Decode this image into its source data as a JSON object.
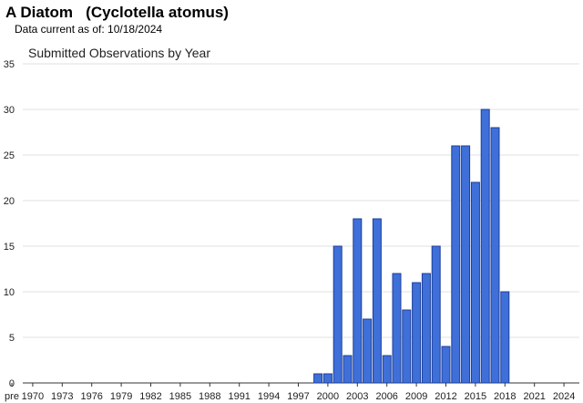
{
  "header": {
    "species_title": "A Diatom   (Cyclotella atomus)",
    "data_current": "Data current as of: 10/18/2024"
  },
  "chart_data": {
    "type": "bar",
    "title": "Submitted Observations by Year",
    "xlabel": "",
    "ylabel": "",
    "ylim": [
      0,
      35
    ],
    "yticks": [
      0,
      5,
      10,
      15,
      20,
      25,
      30,
      35
    ],
    "categories": [
      "pre",
      "1970",
      "1971",
      "1972",
      "1973",
      "1974",
      "1975",
      "1976",
      "1977",
      "1978",
      "1979",
      "1980",
      "1981",
      "1982",
      "1983",
      "1984",
      "1985",
      "1986",
      "1987",
      "1988",
      "1989",
      "1990",
      "1991",
      "1992",
      "1993",
      "1994",
      "1995",
      "1996",
      "1997",
      "1998",
      "1999",
      "2000",
      "2001",
      "2002",
      "2003",
      "2004",
      "2005",
      "2006",
      "2007",
      "2008",
      "2009",
      "2010",
      "2011",
      "2012",
      "2013",
      "2014",
      "2015",
      "2016",
      "2017",
      "2018",
      "2019",
      "2020",
      "2021",
      "2022",
      "2023",
      "2024"
    ],
    "values": [
      0,
      0,
      0,
      0,
      0,
      0,
      0,
      0,
      0,
      0,
      0,
      0,
      0,
      0,
      0,
      0,
      0,
      0,
      0,
      0,
      0,
      0,
      0,
      0,
      0,
      0,
      0,
      0,
      0,
      0,
      1,
      1,
      15,
      3,
      18,
      7,
      18,
      3,
      12,
      8,
      11,
      12,
      15,
      4,
      26,
      26,
      22,
      30,
      28,
      10,
      0,
      0,
      0,
      0,
      0,
      0
    ],
    "xtick_labels": [
      "pre",
      "1970",
      "1973",
      "1976",
      "1979",
      "1982",
      "1985",
      "1988",
      "1991",
      "1994",
      "1997",
      "2000",
      "2003",
      "2006",
      "2009",
      "2012",
      "2015",
      "2018",
      "2021",
      "2024"
    ],
    "bar_color": "#3f6fd8",
    "bar_edge": "#1c3f99",
    "grid": true
  }
}
